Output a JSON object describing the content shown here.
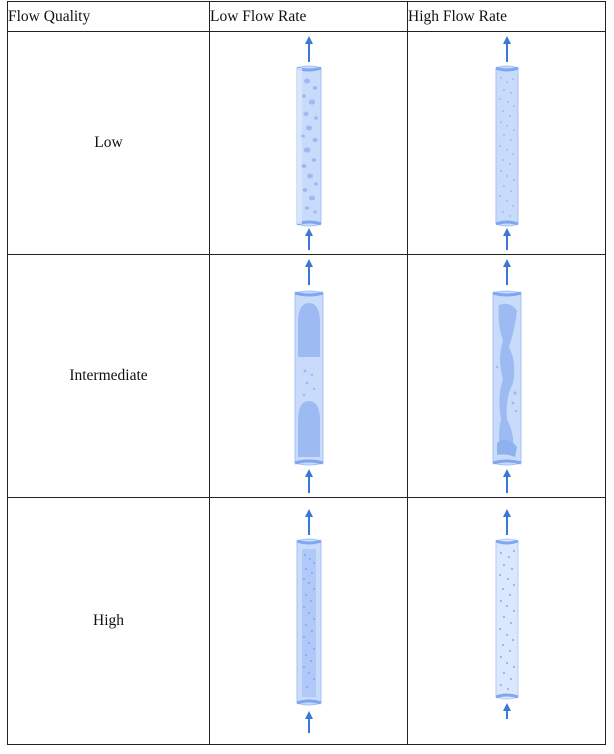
{
  "table": {
    "headers": [
      "Flow Quality",
      "Low Flow Rate",
      "High Flow Rate"
    ],
    "rows": [
      {
        "quality": "Low"
      },
      {
        "quality": "Intermediate"
      },
      {
        "quality": "High"
      }
    ]
  },
  "colors": {
    "pipe_light": "#c9dbfb",
    "pipe_mid": "#a6c2f7",
    "pipe_dark": "#7fa7ee",
    "arrow": "#3a78d8",
    "bubble": "#9dbbf2",
    "border": "#222222"
  },
  "icons": {
    "flow_arrow": "arrow-up-icon"
  }
}
